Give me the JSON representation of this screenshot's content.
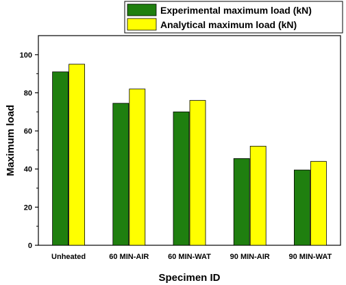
{
  "chart_data": {
    "type": "bar",
    "categories": [
      "Unheated",
      "60 MIN-AIR",
      "60 MIN-WAT",
      "90 MIN-AIR",
      "90 MIN-WAT"
    ],
    "series": [
      {
        "name": "Experimental maximum load (kN)",
        "values": [
          91,
          74.5,
          70,
          45.5,
          39.5
        ],
        "color": "#1F7F0F"
      },
      {
        "name": "Analytical maximum load (kN)",
        "values": [
          95,
          82,
          76,
          52,
          44
        ],
        "color": "#FFFF00"
      }
    ],
    "xlabel": "Specimen ID",
    "ylabel": "Maximum load",
    "ylim": [
      0,
      110
    ],
    "yticks": [
      0,
      20,
      40,
      60,
      80,
      100
    ],
    "grid": false,
    "legend_position": "top-right"
  }
}
